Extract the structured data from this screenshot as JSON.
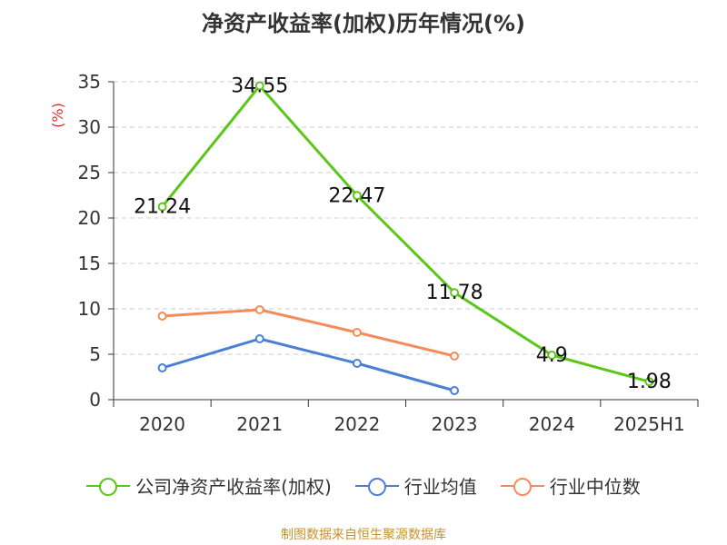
{
  "title": "净资产收益率(加权)历年情况(%)",
  "source": "制图数据来自恒生聚源数据库",
  "chart_data": {
    "type": "line",
    "title": "净资产收益率(加权)历年情况(%)",
    "ylabel": "(%)",
    "xlabel": "",
    "categories": [
      "2020",
      "2021",
      "2022",
      "2023",
      "2024",
      "2025H1"
    ],
    "ylim": [
      0,
      35
    ],
    "yticks": [
      0,
      5,
      10,
      15,
      20,
      25,
      30,
      35
    ],
    "grid": true,
    "legend_position": "bottom",
    "series": [
      {
        "name": "公司净资产收益率(加权)",
        "color": "#5cc619",
        "values": [
          21.24,
          34.55,
          22.47,
          11.78,
          4.9,
          1.98
        ],
        "labels": [
          "21.24",
          "34.55",
          "22.47",
          "11.78",
          "4.9",
          "1.98"
        ]
      },
      {
        "name": "行业均值",
        "color": "#4a7fd6",
        "values": [
          3.5,
          6.7,
          4.0,
          1.0,
          null,
          null
        ]
      },
      {
        "name": "行业中位数",
        "color": "#f48c5a",
        "values": [
          9.2,
          9.9,
          7.4,
          4.8,
          null,
          null
        ]
      }
    ]
  }
}
